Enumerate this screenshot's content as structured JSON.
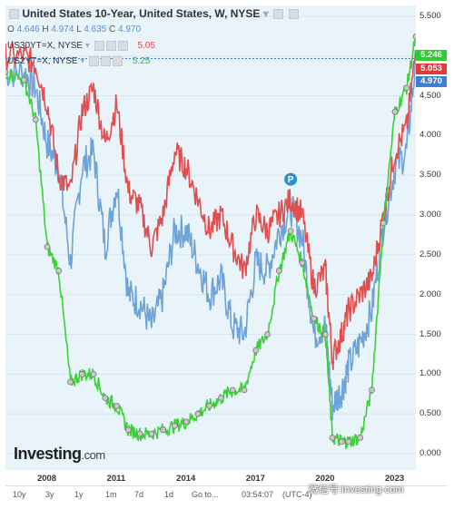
{
  "header": {
    "title": "United States 10-Year, United States, W, NYSE",
    "ohlc": {
      "o_label": "O",
      "o": "4.646",
      "h_label": "H",
      "h": "4.974",
      "l_label": "L",
      "l": "4.635",
      "c_label": "C",
      "c": "4.970"
    },
    "series2_name": "US30YT=X, NYSE",
    "series2_value": "5.05",
    "series3_name": "US2YT=X, NYSE",
    "series3_value": "5.25"
  },
  "price_tags": {
    "green": "5.246",
    "red": "5.053",
    "blue": "4.970"
  },
  "colors": {
    "blue": "#6ea3d8",
    "red": "#e04f4f",
    "green": "#39d233",
    "tag_green": "#2ecc2e",
    "tag_red": "#e23a3a",
    "tag_blue": "#3f7fd1",
    "bg": "#e8f3fa"
  },
  "chart_data": {
    "type": "line",
    "x_ticks": [
      "2008",
      "2011",
      "2014",
      "2017",
      "2020",
      "2023"
    ],
    "y_ticks": [
      "5.500",
      "5.000",
      "4.500",
      "4.000",
      "3.500",
      "3.000",
      "2.500",
      "2.000",
      "1.500",
      "1.000",
      "0.500",
      "0.000"
    ],
    "ylim": [
      0,
      5.5
    ],
    "xlim": [
      2006.2,
      2023.9
    ],
    "series": [
      {
        "name": "US30YT=X, NYSE",
        "color": "#e04f4f",
        "x": [
          2006.2,
          2007,
          2007.5,
          2008,
          2008.5,
          2009,
          2009.5,
          2010,
          2010.5,
          2011,
          2011.5,
          2012,
          2012.5,
          2013,
          2013.5,
          2014,
          2014.5,
          2015,
          2015.5,
          2016,
          2016.5,
          2017,
          2017.5,
          2018,
          2018.5,
          2019,
          2019.5,
          2020,
          2020.3,
          2020.7,
          2021,
          2021.5,
          2022,
          2022.5,
          2023,
          2023.5,
          2023.9
        ],
        "y": [
          5.0,
          5.0,
          4.9,
          4.4,
          3.5,
          3.3,
          4.3,
          4.6,
          3.9,
          4.4,
          3.3,
          3.1,
          2.6,
          3.0,
          3.8,
          3.6,
          3.2,
          2.8,
          3.0,
          2.6,
          2.3,
          3.0,
          2.8,
          3.0,
          3.2,
          3.0,
          2.1,
          2.3,
          1.2,
          1.5,
          1.8,
          2.0,
          2.2,
          3.0,
          3.8,
          4.1,
          5.05
        ]
      },
      {
        "name": "United States 10-Year",
        "color": "#6ea3d8",
        "x": [
          2006.2,
          2007,
          2007.5,
          2008,
          2008.5,
          2009,
          2009.5,
          2010,
          2010.5,
          2011,
          2011.5,
          2012,
          2012.5,
          2013,
          2013.5,
          2014,
          2014.5,
          2015,
          2015.5,
          2016,
          2016.5,
          2017,
          2017.5,
          2018,
          2018.5,
          2019,
          2019.5,
          2020,
          2020.3,
          2020.7,
          2021,
          2021.5,
          2022,
          2022.5,
          2023,
          2023.5,
          2023.9
        ],
        "y": [
          4.8,
          4.8,
          4.6,
          3.9,
          3.6,
          2.4,
          3.6,
          3.8,
          2.6,
          3.4,
          2.0,
          1.9,
          1.6,
          2.0,
          2.8,
          2.8,
          2.4,
          2.0,
          2.2,
          1.6,
          1.5,
          2.4,
          2.3,
          2.8,
          3.1,
          2.7,
          1.5,
          1.6,
          0.6,
          0.8,
          1.1,
          1.4,
          1.8,
          2.9,
          3.6,
          3.8,
          4.97
        ]
      },
      {
        "name": "US2YT=X, NYSE",
        "color": "#39d233",
        "x": [
          2006.2,
          2007,
          2007.5,
          2008,
          2008.5,
          2009,
          2009.5,
          2010,
          2010.5,
          2011,
          2011.5,
          2012,
          2012.5,
          2013,
          2013.5,
          2014,
          2014.5,
          2015,
          2015.5,
          2016,
          2016.5,
          2017,
          2017.5,
          2018,
          2018.5,
          2019,
          2019.5,
          2020,
          2020.3,
          2020.7,
          2021,
          2021.5,
          2022,
          2022.5,
          2023,
          2023.5,
          2023.9
        ],
        "y": [
          4.8,
          4.7,
          4.2,
          2.6,
          2.3,
          0.9,
          1.0,
          1.0,
          0.7,
          0.6,
          0.3,
          0.25,
          0.25,
          0.3,
          0.35,
          0.4,
          0.5,
          0.6,
          0.7,
          0.8,
          0.8,
          1.3,
          1.5,
          2.3,
          2.8,
          2.4,
          1.7,
          1.5,
          0.2,
          0.15,
          0.15,
          0.2,
          0.8,
          2.9,
          4.3,
          4.6,
          5.246
        ]
      }
    ]
  },
  "marker": {
    "label": "P"
  },
  "logo": {
    "main": "Investing",
    "suffix": ".com"
  },
  "bottom_bar": [
    "10y",
    "3y",
    "1y",
    "1m",
    "7d",
    "1d",
    "Go to...",
    "03:54:07",
    "(UTC-4)"
  ],
  "watermark": "微信号:Investing-com"
}
